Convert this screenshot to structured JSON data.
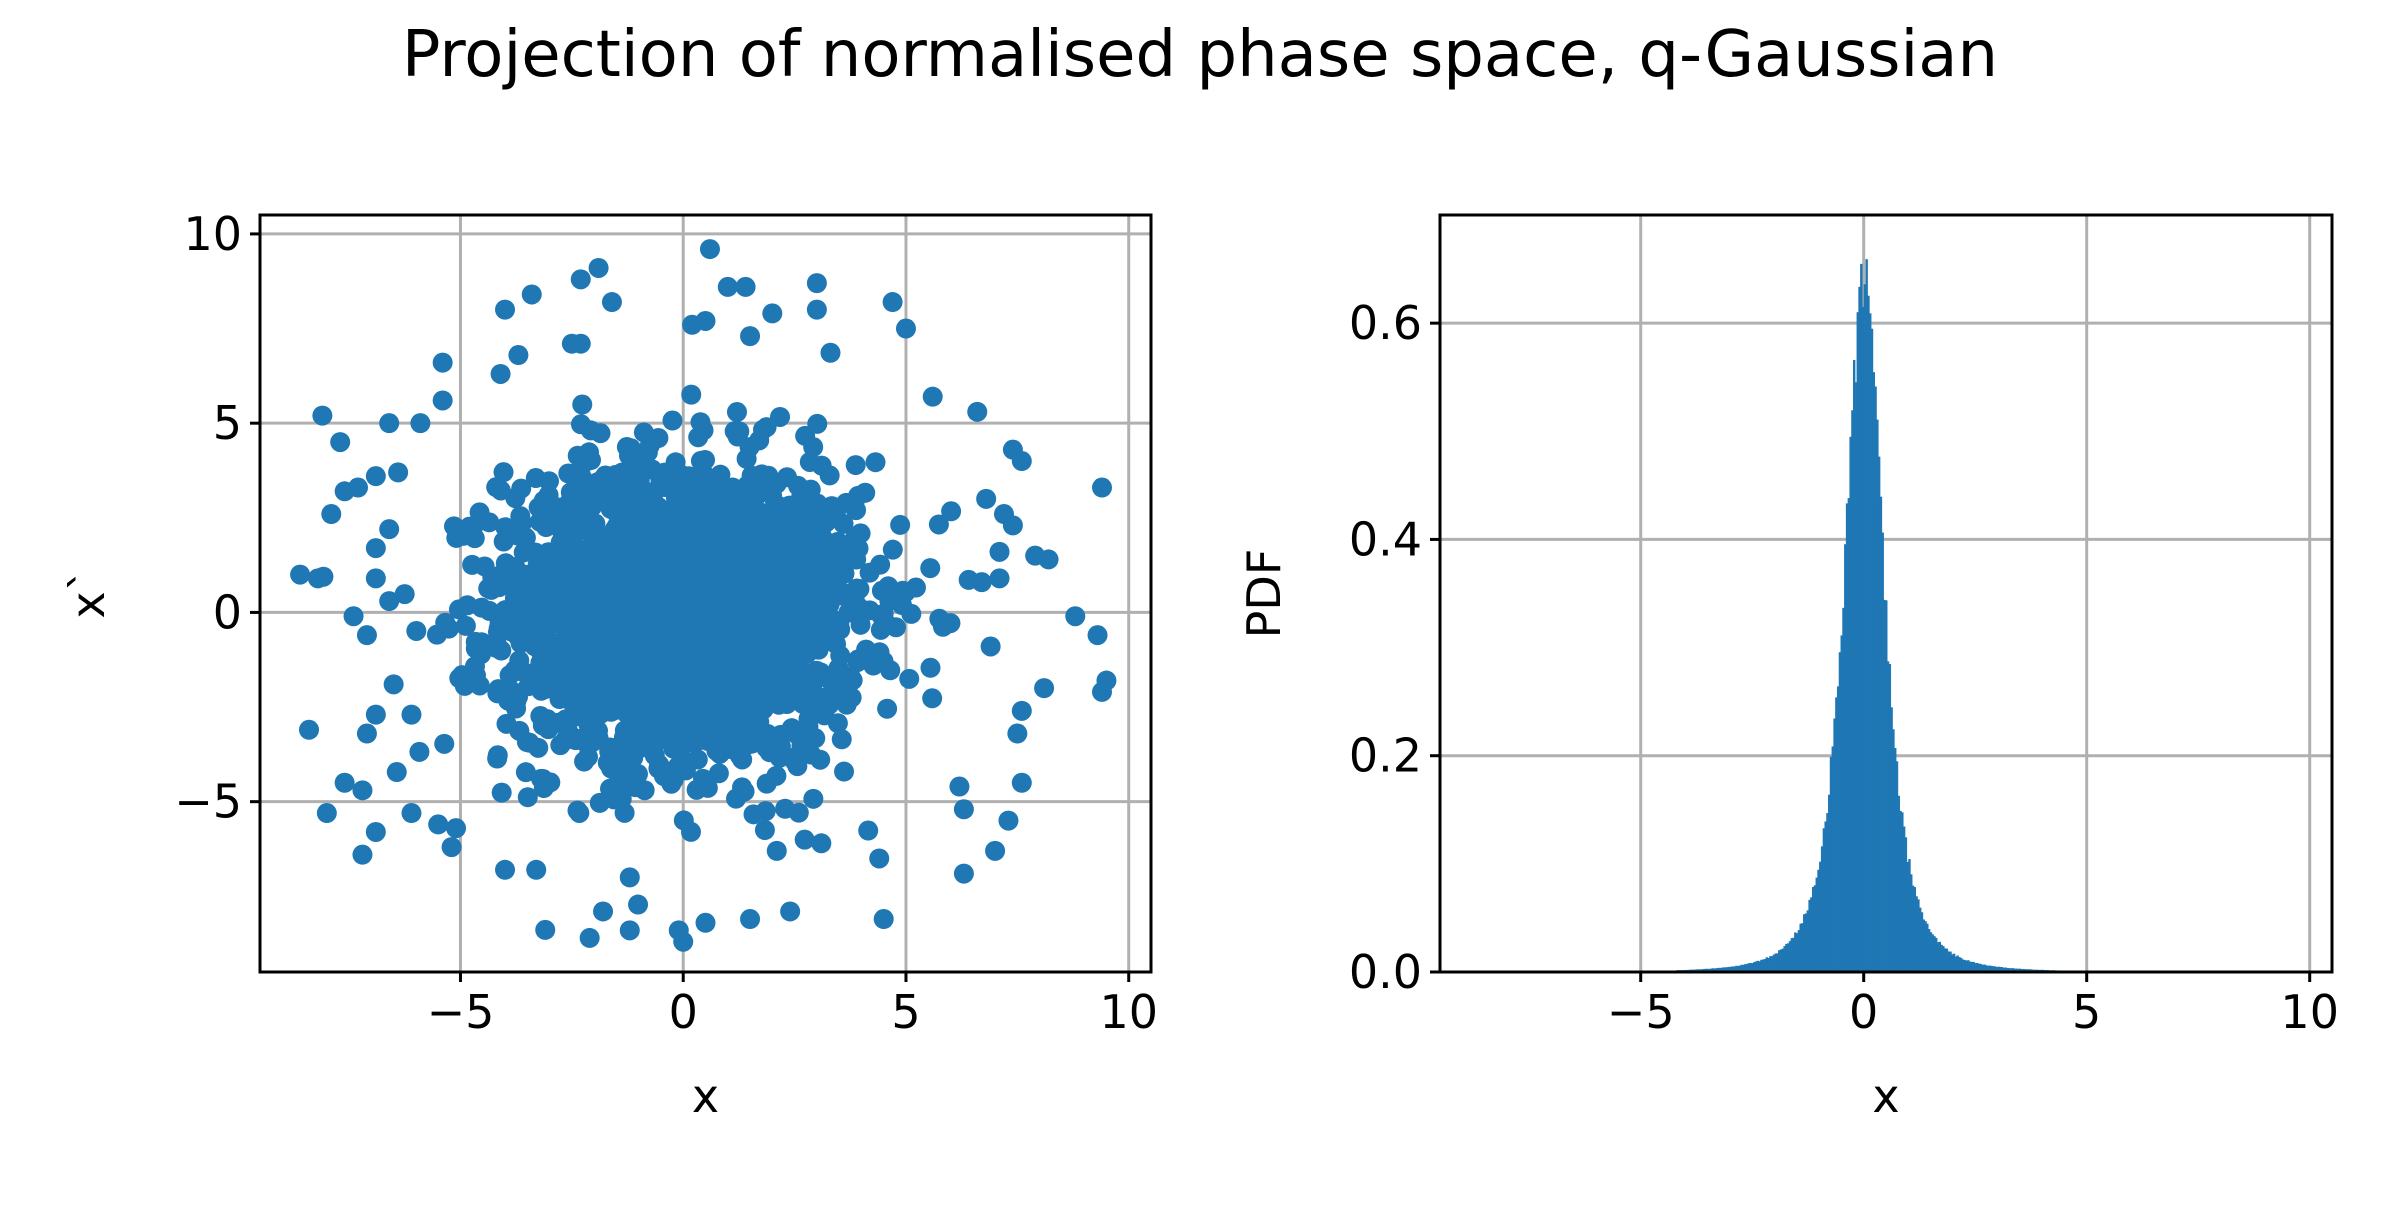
{
  "figure": {
    "title": "Projection of normalised phase space, q-Gaussian"
  },
  "colors": {
    "series": "#1f77b4",
    "grid": "#b0b0b0",
    "axes": "#000000"
  },
  "chart_data": [
    {
      "type": "scatter",
      "xlabel": "x",
      "ylabel": "x`",
      "xlim": [
        -9.5,
        10.5
      ],
      "ylim": [
        -9.5,
        10.5
      ],
      "xticks": [
        -5,
        0,
        5,
        10
      ],
      "xtick_labels": [
        "−5",
        "0",
        "5",
        "10"
      ],
      "yticks": [
        -5,
        0,
        5,
        10
      ],
      "ytick_labels": [
        "−5",
        "0",
        "5",
        "10"
      ],
      "grid": true,
      "core_points": 2200,
      "core_sigma": 2.0,
      "outliers": [
        [
          0.6,
          9.6
        ],
        [
          -1.9,
          9.1
        ],
        [
          -2.3,
          8.8
        ],
        [
          -3.4,
          8.4
        ],
        [
          -4.0,
          8.0
        ],
        [
          1.0,
          8.6
        ],
        [
          1.4,
          8.6
        ],
        [
          3.0,
          8.7
        ],
        [
          4.7,
          8.2
        ],
        [
          -1.6,
          8.2
        ],
        [
          0.2,
          7.6
        ],
        [
          0.5,
          7.7
        ],
        [
          1.5,
          7.3
        ],
        [
          2.0,
          7.9
        ],
        [
          3.0,
          8.0
        ],
        [
          5.0,
          7.5
        ],
        [
          -2.5,
          7.1
        ],
        [
          -2.3,
          7.1
        ],
        [
          -3.7,
          6.8
        ],
        [
          -5.4,
          6.6
        ],
        [
          -4.1,
          6.3
        ],
        [
          -8.1,
          5.2
        ],
        [
          -6.6,
          5.0
        ],
        [
          -5.9,
          5.0
        ],
        [
          -5.4,
          5.6
        ],
        [
          -7.7,
          4.5
        ],
        [
          5.6,
          5.7
        ],
        [
          6.6,
          5.3
        ],
        [
          7.4,
          4.3
        ],
        [
          7.6,
          4.0
        ],
        [
          9.4,
          3.3
        ],
        [
          -7.6,
          3.2
        ],
        [
          -7.3,
          3.3
        ],
        [
          -6.9,
          3.6
        ],
        [
          -6.4,
          3.7
        ],
        [
          -6.6,
          2.2
        ],
        [
          -7.9,
          2.6
        ],
        [
          -6.9,
          1.7
        ],
        [
          6.8,
          3.0
        ],
        [
          7.2,
          2.6
        ],
        [
          7.4,
          2.3
        ],
        [
          7.1,
          1.6
        ],
        [
          7.9,
          1.5
        ],
        [
          8.2,
          1.4
        ],
        [
          -8.6,
          1.0
        ],
        [
          -8.2,
          0.9
        ],
        [
          -6.9,
          0.9
        ],
        [
          -6.6,
          0.3
        ],
        [
          -7.1,
          -0.6
        ],
        [
          -7.4,
          -0.1
        ],
        [
          6.7,
          0.8
        ],
        [
          7.1,
          0.9
        ],
        [
          8.8,
          -0.1
        ],
        [
          9.3,
          -0.6
        ],
        [
          6.9,
          -0.9
        ],
        [
          -8.4,
          -3.1
        ],
        [
          -6.9,
          -2.7
        ],
        [
          -7.1,
          -3.2
        ],
        [
          -6.5,
          -1.9
        ],
        [
          -6.1,
          -2.7
        ],
        [
          7.5,
          -3.2
        ],
        [
          7.6,
          -2.6
        ],
        [
          8.1,
          -2.0
        ],
        [
          9.4,
          -2.1
        ],
        [
          9.5,
          -1.8
        ],
        [
          -7.6,
          -4.5
        ],
        [
          -7.2,
          -4.7
        ],
        [
          -8.0,
          -5.3
        ],
        [
          -6.9,
          -5.8
        ],
        [
          -7.2,
          -6.4
        ],
        [
          -6.1,
          -5.3
        ],
        [
          -5.5,
          -5.6
        ],
        [
          -5.2,
          -6.2
        ],
        [
          -5.1,
          -5.7
        ],
        [
          6.2,
          -4.6
        ],
        [
          6.3,
          -5.2
        ],
        [
          7.6,
          -4.5
        ],
        [
          7.3,
          -5.5
        ],
        [
          7.0,
          -6.3
        ],
        [
          6.3,
          -6.9
        ],
        [
          -4.0,
          -6.8
        ],
        [
          -3.3,
          -6.8
        ],
        [
          -2.1,
          -8.6
        ],
        [
          -1.8,
          -7.9
        ],
        [
          -1.2,
          -8.4
        ],
        [
          -0.1,
          -8.4
        ],
        [
          0,
          -8.7
        ],
        [
          0.5,
          -8.2
        ],
        [
          1.5,
          -8.1
        ],
        [
          2.4,
          -7.9
        ],
        [
          4.5,
          -8.1
        ],
        [
          4.4,
          -6.5
        ],
        [
          3.1,
          -6.1
        ],
        [
          2.1,
          -6.3
        ],
        [
          -1.2,
          -7.0
        ]
      ]
    },
    {
      "type": "bar",
      "xlabel": "x",
      "ylabel": "PDF",
      "xlim": [
        -9.5,
        10.5
      ],
      "ylim": [
        0,
        0.7
      ],
      "xticks": [
        -5,
        0,
        5,
        10
      ],
      "xtick_labels": [
        "−5",
        "0",
        "5",
        "10"
      ],
      "yticks": [
        0,
        0.2,
        0.4,
        0.6
      ],
      "ytick_labels": [
        "0.0",
        "0.2",
        "0.4",
        "0.6"
      ],
      "grid": true,
      "bin_range": [
        -4.2,
        4.4
      ],
      "bin_width": 0.04,
      "peak_x": 0.0,
      "peak_y": 0.64,
      "q": 1.6,
      "width_param": 0.55
    }
  ]
}
